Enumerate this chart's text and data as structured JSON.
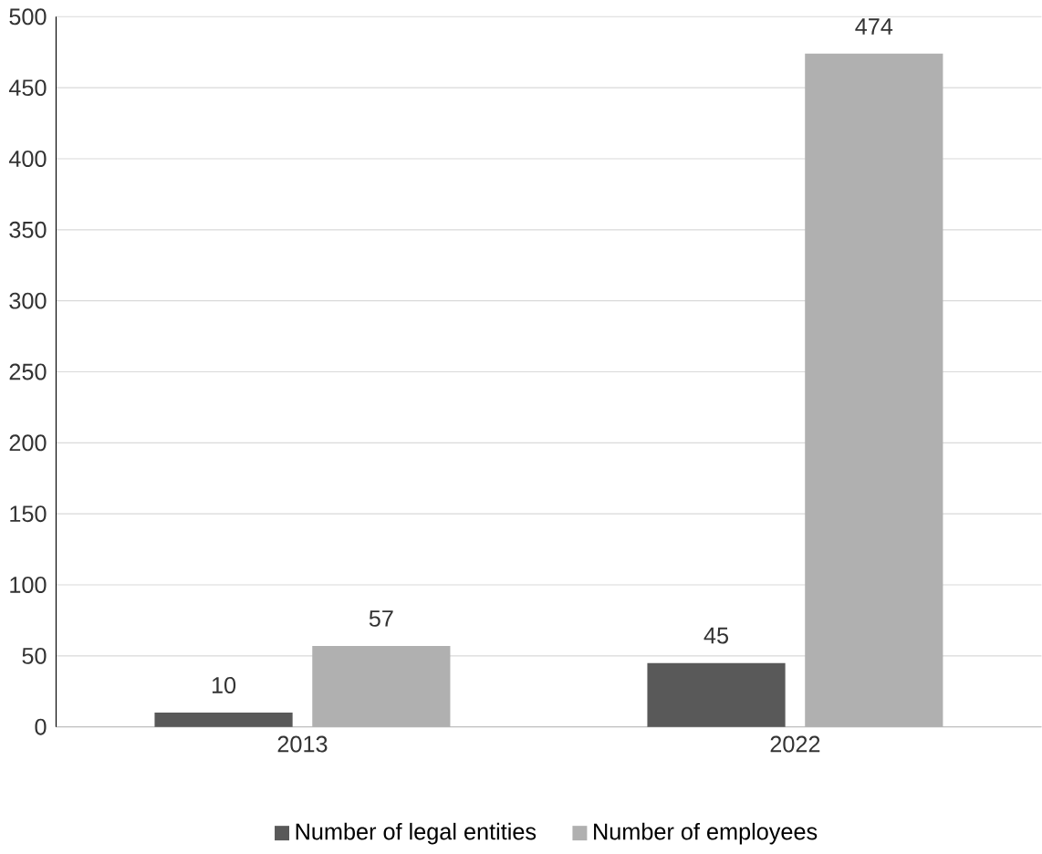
{
  "chart_data": {
    "type": "bar",
    "categories": [
      "2013",
      "2022"
    ],
    "series": [
      {
        "name": "Number of legal entities",
        "color": "#595959",
        "values": [
          10,
          45
        ]
      },
      {
        "name": "Number of employees",
        "color": "#b0b0b0",
        "values": [
          57,
          474
        ]
      }
    ],
    "ylim": [
      0,
      500
    ],
    "yticks": [
      0,
      50,
      100,
      150,
      200,
      250,
      300,
      350,
      400,
      450,
      500
    ],
    "grid": "y",
    "legend": "bottom",
    "data_labels": true
  }
}
